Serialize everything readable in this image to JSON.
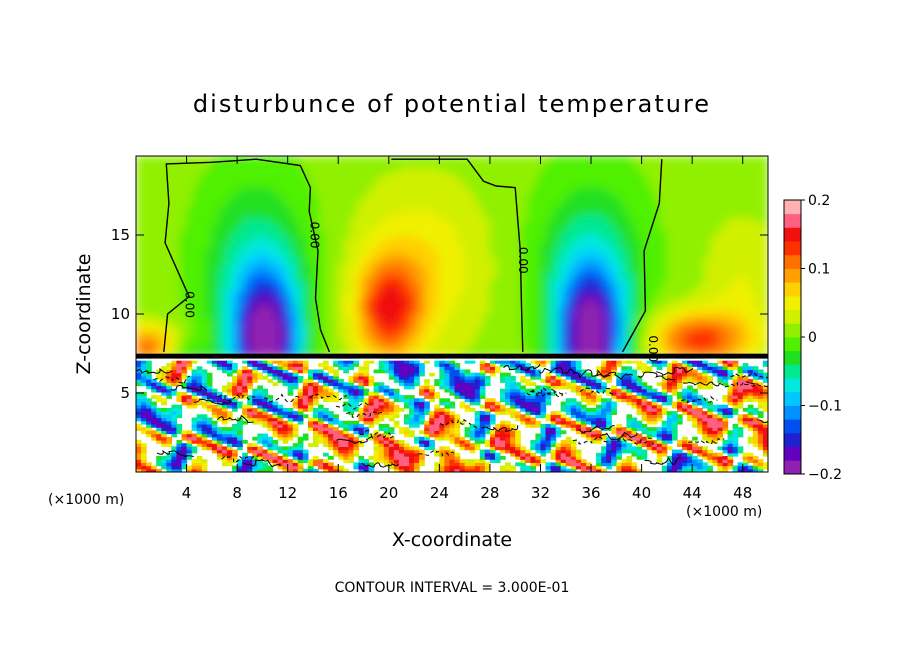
{
  "chart_data": {
    "type": "heatmap",
    "title": "disturbunce of potential temperature",
    "xlabel": "X-coordinate",
    "ylabel": "Z-coordinate",
    "x_unit_left": "(×1000 m)",
    "x_unit_right": "(×1000 m)",
    "xlim": [
      0,
      50
    ],
    "ylim": [
      0,
      20
    ],
    "x_ticks": [
      4,
      8,
      12,
      16,
      20,
      24,
      28,
      32,
      36,
      40,
      44,
      48
    ],
    "y_ticks": [
      5,
      10,
      15
    ],
    "colorbar": {
      "range": [
        -0.2,
        0.2
      ],
      "tick_values": [
        0.2,
        0.1,
        0,
        -0.1,
        -0.2
      ],
      "tick_labels": [
        "0.2",
        "0.1",
        "0",
        "−0.1",
        "−0.2"
      ],
      "colors": [
        "#8f20b0",
        "#6000c0",
        "#2020d0",
        "#0050f0",
        "#0090ff",
        "#00c8ff",
        "#00e8e0",
        "#00e890",
        "#20e020",
        "#50f000",
        "#90f000",
        "#d0f000",
        "#f0f000",
        "#ffd000",
        "#ffa000",
        "#ff7000",
        "#ff3000",
        "#f01010",
        "#ff6080",
        "#ffb0b0"
      ]
    },
    "contour_labels": [
      "0.00",
      "0.00",
      "0.00",
      "0.00"
    ],
    "contour_interval_text": "CONTOUR INTERVAL = 3.000E-01",
    "upper_layer_features": [
      {
        "x": 4,
        "z_center": 7.5,
        "value": -0.04
      },
      {
        "x": 10.3,
        "z_center": 9,
        "value": -0.19
      },
      {
        "x": 15,
        "z_center": 14,
        "value": 0
      },
      {
        "x": 20,
        "z_center": 11,
        "value": 0.12
      },
      {
        "x": 24,
        "z_center": 13,
        "value": 0.06
      },
      {
        "x": 36,
        "z_center": 10,
        "value": -0.18
      },
      {
        "x": 44,
        "z_center": 9,
        "value": 0.1
      }
    ],
    "lower_layer_top": 7.3
  }
}
